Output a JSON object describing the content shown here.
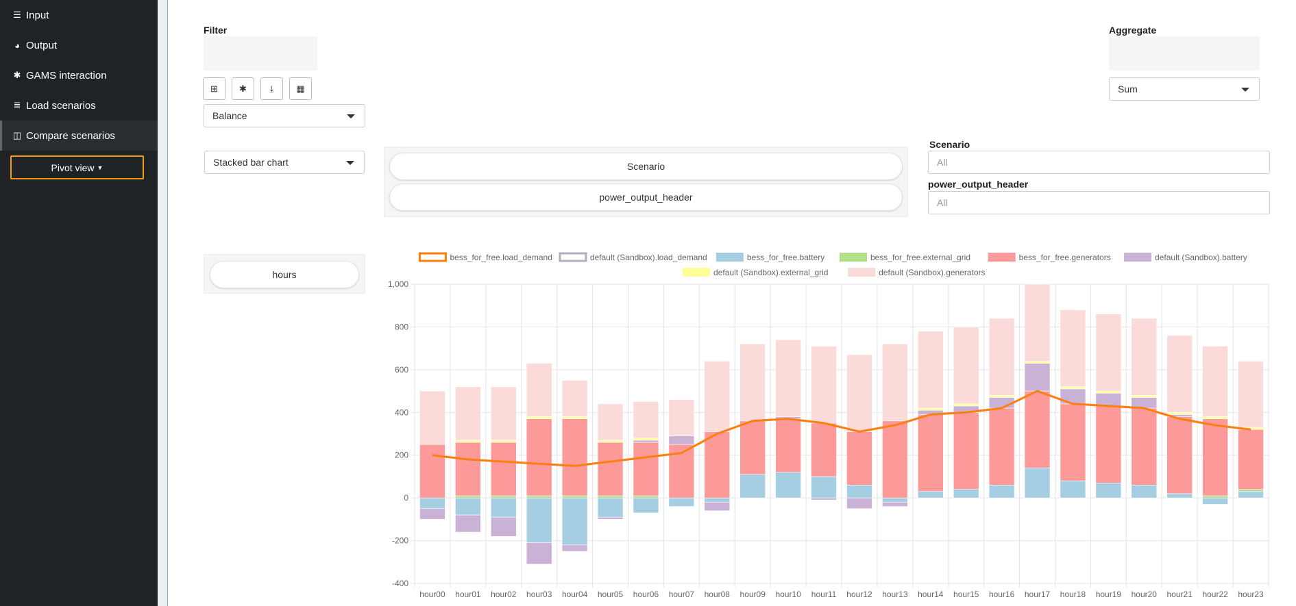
{
  "sidebar": {
    "items": [
      {
        "label": "Input",
        "icon": "sliders-icon"
      },
      {
        "label": "Output",
        "icon": "pie-chart-icon"
      },
      {
        "label": "GAMS interaction",
        "icon": "gear-icon"
      },
      {
        "label": "Load scenarios",
        "icon": "database-icon"
      },
      {
        "label": "Compare scenarios",
        "icon": "columns-icon",
        "active": true
      }
    ],
    "pivot_view_label": "Pivot view"
  },
  "filter": {
    "label": "Filter",
    "toolbar_icons": [
      "add-view-icon",
      "gear-icon",
      "download-icon",
      "table-icon"
    ],
    "symbol_select": "Balance",
    "chart_type_select": "Stacked bar chart"
  },
  "aggregate": {
    "label": "Aggregate",
    "select": "Sum"
  },
  "column_pills": [
    "Scenario",
    "power_output_header"
  ],
  "row_pills": [
    "hours"
  ],
  "column_filters": [
    {
      "label": "Scenario",
      "placeholder": "All"
    },
    {
      "label": "power_output_header",
      "placeholder": "All"
    }
  ],
  "colors": {
    "accent": "#f39c12",
    "sidebar_bg": "#1f2326"
  },
  "chart_data": {
    "type": "bar",
    "stacked": true,
    "categories": [
      "hour00",
      "hour01",
      "hour02",
      "hour03",
      "hour04",
      "hour05",
      "hour06",
      "hour07",
      "hour08",
      "hour09",
      "hour10",
      "hour11",
      "hour12",
      "hour13",
      "hour14",
      "hour15",
      "hour16",
      "hour17",
      "hour18",
      "hour19",
      "hour20",
      "hour21",
      "hour22",
      "hour23"
    ],
    "ylim": [
      -400,
      1000
    ],
    "yticks": [
      "-400",
      "-200",
      "0",
      "200",
      "400",
      "600",
      "800",
      "1,000"
    ],
    "ytick_values": [
      -400,
      -200,
      0,
      200,
      400,
      600,
      800,
      1000
    ],
    "grid": true,
    "legend_position": "top",
    "lines": [
      {
        "name": "bess_for_free.load_demand",
        "color": "#ff7f0e",
        "values": [
          200,
          180,
          170,
          160,
          150,
          170,
          190,
          210,
          300,
          360,
          370,
          350,
          310,
          340,
          390,
          400,
          420,
          500,
          440,
          430,
          420,
          370,
          340,
          320
        ]
      },
      {
        "name": "default (Sandbox).load_demand",
        "color": "#b3aebe",
        "values": [
          200,
          180,
          170,
          160,
          150,
          170,
          190,
          210,
          300,
          360,
          370,
          350,
          310,
          340,
          390,
          400,
          420,
          500,
          440,
          430,
          420,
          370,
          340,
          320
        ]
      }
    ],
    "series": [
      {
        "name": "bess_for_free.battery",
        "color": "#a6cee3",
        "values": [
          -50,
          -80,
          -90,
          -210,
          -220,
          -90,
          -70,
          -40,
          -20,
          110,
          120,
          100,
          60,
          -20,
          30,
          40,
          60,
          140,
          80,
          70,
          60,
          20,
          -30,
          30
        ]
      },
      {
        "name": "bess_for_free.external_grid",
        "color": "#b2df8a",
        "values": [
          0,
          10,
          10,
          10,
          10,
          10,
          10,
          0,
          0,
          0,
          0,
          0,
          0,
          0,
          0,
          0,
          0,
          0,
          0,
          0,
          0,
          0,
          10,
          10
        ]
      },
      {
        "name": "bess_for_free.generators",
        "color": "#fb9a99",
        "values": [
          250,
          250,
          250,
          360,
          360,
          250,
          250,
          250,
          310,
          250,
          250,
          250,
          250,
          360,
          360,
          360,
          360,
          360,
          360,
          360,
          360,
          360,
          360,
          280
        ]
      },
      {
        "name": "default (Sandbox).battery",
        "color": "#cab2d6",
        "values": [
          -50,
          -80,
          -90,
          -100,
          -30,
          -10,
          10,
          40,
          -40,
          0,
          10,
          -10,
          -50,
          -20,
          20,
          30,
          50,
          130,
          70,
          60,
          50,
          10,
          0,
          0
        ]
      },
      {
        "name": "default (Sandbox).external_grid",
        "color": "#ffff99",
        "values": [
          0,
          10,
          10,
          10,
          10,
          10,
          10,
          0,
          0,
          0,
          0,
          0,
          0,
          0,
          10,
          10,
          10,
          10,
          10,
          10,
          10,
          10,
          10,
          10
        ]
      },
      {
        "name": "default (Sandbox).generators",
        "color": "#fadbda",
        "values": [
          250,
          250,
          250,
          250,
          170,
          170,
          170,
          170,
          330,
          360,
          360,
          360,
          360,
          360,
          360,
          360,
          360,
          360,
          360,
          360,
          360,
          360,
          330,
          310
        ]
      }
    ]
  }
}
